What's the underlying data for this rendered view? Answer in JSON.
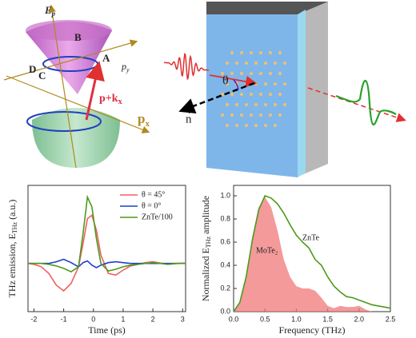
{
  "diagram_left": {
    "e_axis": "E",
    "e_axis_sub": "p",
    "point_a": "A",
    "point_b": "B",
    "point_c": "C",
    "point_d": "D",
    "py_axis": "p",
    "py_axis_sub": "y",
    "shift": "p+k",
    "shift_sub": "x",
    "px_axis": "p",
    "px_axis_sub": "x"
  },
  "diagram_right": {
    "angle": "θ",
    "normal": "n"
  },
  "chart_data": [
    {
      "type": "line",
      "xlabel": "Time (ps)",
      "ylabel": "THz emission, E",
      "ylabel_sub": "THz",
      "ylabel_tail": " (a.u.)",
      "x": [
        -2.2,
        -2,
        -1.75,
        -1.5,
        -1.25,
        -1,
        -0.75,
        -0.5,
        -0.35,
        -0.2,
        -0.05,
        0.1,
        0.25,
        0.5,
        0.75,
        1,
        1.25,
        1.5,
        1.75,
        2,
        2.25,
        2.5,
        2.75,
        3,
        3.1
      ],
      "xlim": [
        -2.2,
        3.1
      ],
      "xticks": [
        -2,
        -1,
        0,
        1,
        2,
        3
      ],
      "ylim": [
        -2.9,
        4.7
      ],
      "legend": "upper right",
      "series": [
        {
          "name": "θ = 45°",
          "color": "#f06060",
          "values": [
            0,
            -0.05,
            -0.2,
            -0.6,
            -1.3,
            -1.65,
            -1.2,
            -0.2,
            1.2,
            2.7,
            2.9,
            2.0,
            0.5,
            -0.6,
            -0.7,
            -0.4,
            -0.15,
            -0.05,
            0.05,
            0.1,
            0.02,
            -0.05,
            -0.02,
            0.02,
            0
          ]
        },
        {
          "name": "θ = 0°",
          "color": "#1f3fc8",
          "values": [
            0,
            0,
            0,
            0,
            0.1,
            0.25,
            0.05,
            -0.2,
            0.05,
            0.15,
            -0.1,
            -0.25,
            -0.1,
            0.05,
            0.1,
            0.05,
            0,
            0,
            0,
            0,
            0,
            0,
            0,
            0,
            0
          ]
        },
        {
          "name": "ZnTe/100",
          "color": "#4c9a1c",
          "values": [
            0,
            0,
            0,
            -0.05,
            -0.15,
            -0.3,
            -0.5,
            -0.2,
            1.8,
            4.0,
            3.4,
            1.5,
            0,
            -0.45,
            -0.35,
            -0.2,
            -0.1,
            -0.05,
            0,
            0.05,
            0,
            -0.05,
            0,
            0,
            0
          ]
        }
      ]
    },
    {
      "type": "line",
      "xlabel": "Frequency (THz)",
      "ylabel": "Normalized E",
      "ylabel_sub": "THz",
      "ylabel_tail": " amplitude",
      "x": [
        0,
        0.1,
        0.2,
        0.3,
        0.4,
        0.5,
        0.6,
        0.7,
        0.8,
        0.9,
        1.0,
        1.1,
        1.2,
        1.3,
        1.4,
        1.5,
        1.6,
        1.7,
        1.8,
        1.9,
        2.0,
        2.1,
        2.2,
        2.3,
        2.4,
        2.5
      ],
      "xlim": [
        0,
        2.5
      ],
      "xticks": [
        {
          "value": 0,
          "label": "0.0"
        },
        0.5,
        {
          "value": 1,
          "label": "1.0"
        },
        1.5,
        {
          "value": 2,
          "label": "2.0"
        },
        2.5
      ],
      "ylim": [
        0,
        1.09
      ],
      "yticks": [
        {
          "value": 0,
          "label": "0.0"
        },
        0.2,
        0.4,
        0.6,
        0.8,
        {
          "value": 1,
          "label": "1.0"
        }
      ],
      "series": [
        {
          "name": "MoTe₂",
          "color": "#f07878",
          "fill": true,
          "values": [
            0,
            0.08,
            0.3,
            0.65,
            0.9,
            0.99,
            0.9,
            0.7,
            0.45,
            0.3,
            0.22,
            0.2,
            0.2,
            0.18,
            0.12,
            0.05,
            0.03,
            0.05,
            0.04,
            0.04,
            0.05,
            0.02,
            0,
            0,
            0,
            0
          ]
        },
        {
          "name": "ZnTe",
          "color": "#4c9a1c",
          "fill": false,
          "values": [
            0,
            0.08,
            0.3,
            0.62,
            0.88,
            1.0,
            0.98,
            0.93,
            0.85,
            0.75,
            0.66,
            0.6,
            0.55,
            0.45,
            0.4,
            0.3,
            0.22,
            0.17,
            0.13,
            0.12,
            0.1,
            0.08,
            0.06,
            0.05,
            0.04,
            0.03
          ]
        }
      ]
    }
  ]
}
